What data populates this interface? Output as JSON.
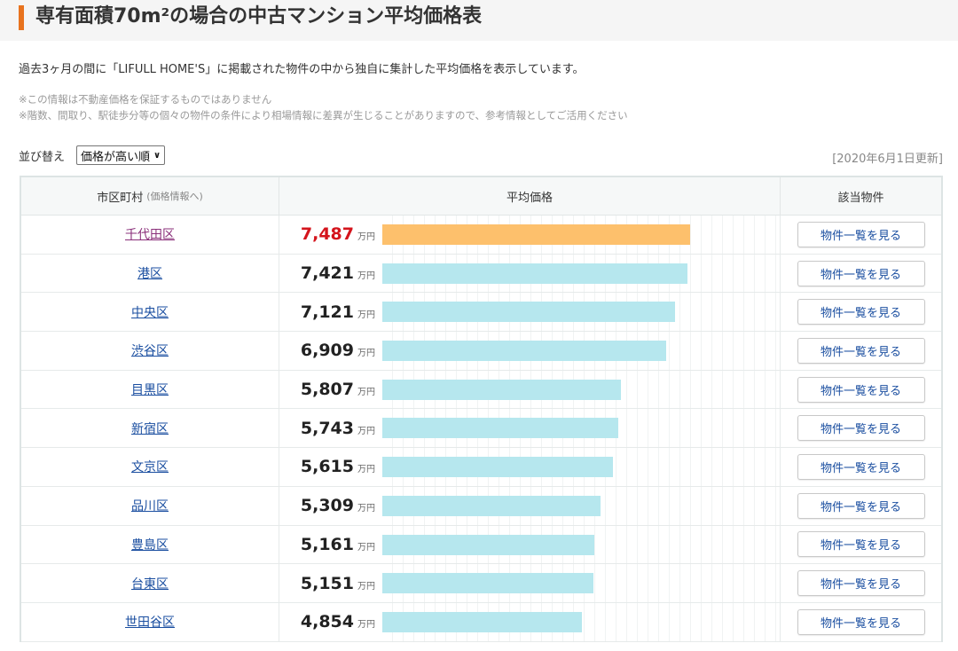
{
  "page": {
    "title": "専有面積70m²の場合の中古マンション平均価格表",
    "intro": "過去3ヶ月の間に「LIFULL HOME'S」に掲載された物件の中から独自に集計した平均価格を表示しています。",
    "notes": [
      "※この情報は不動産価格を保証するものではありません",
      "※階数、間取り、駅徒歩分等の個々の物件の条件により相場情報に差異が生じることがありますので、参考情報としてご活用ください"
    ]
  },
  "sort": {
    "label": "並び替え",
    "selected": "価格が高い順"
  },
  "updated": "[2020年6月1日更新]",
  "table": {
    "headers": {
      "ward": "市区町村",
      "ward_sub": "(価格情報へ)",
      "price": "平均価格",
      "listings": "該当物件"
    },
    "unit": "万円",
    "button_label": "物件一覧を見る",
    "bar_max": 9700,
    "rows": [
      {
        "ward": "千代田区",
        "price": "7,487",
        "value": 7487
      },
      {
        "ward": "港区",
        "price": "7,421",
        "value": 7421
      },
      {
        "ward": "中央区",
        "price": "7,121",
        "value": 7121
      },
      {
        "ward": "渋谷区",
        "price": "6,909",
        "value": 6909
      },
      {
        "ward": "目黒区",
        "price": "5,807",
        "value": 5807
      },
      {
        "ward": "新宿区",
        "price": "5,743",
        "value": 5743
      },
      {
        "ward": "文京区",
        "price": "5,615",
        "value": 5615
      },
      {
        "ward": "品川区",
        "price": "5,309",
        "value": 5309
      },
      {
        "ward": "豊島区",
        "price": "5,161",
        "value": 5161
      },
      {
        "ward": "台東区",
        "price": "5,151",
        "value": 5151
      },
      {
        "ward": "世田谷区",
        "price": "4,854",
        "value": 4854
      }
    ]
  },
  "colors": {
    "accent": "#e8731e",
    "top_bar": "#fdc06c",
    "bar": "#b6e7ee",
    "top_price": "#d4141c",
    "link": "#1a4ea0",
    "visited_link": "#8a2f7a"
  }
}
